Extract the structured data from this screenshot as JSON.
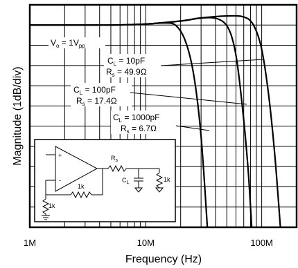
{
  "chart_data": {
    "type": "line",
    "title": "",
    "xlabel": "Frequency (Hz)",
    "ylabel": "Magnitude (1dB/div)",
    "x_scale": "log",
    "xlim": [
      1000000,
      200000000
    ],
    "ylim": [
      -10,
      1
    ],
    "x_ticks": [
      {
        "value": 1000000,
        "label": "1M"
      },
      {
        "value": 10000000,
        "label": "10M"
      },
      {
        "value": 100000000,
        "label": "100M"
      }
    ],
    "grid": true,
    "series": [
      {
        "id": "cl10",
        "points": [
          [
            1000000,
            0
          ],
          [
            5000000,
            0
          ],
          [
            10000000,
            0.05
          ],
          [
            20000000,
            0.2
          ],
          [
            30000000,
            0.35
          ],
          [
            50000000,
            0.45
          ],
          [
            70000000,
            0.4
          ],
          [
            85000000,
            0
          ],
          [
            100000000,
            -1.2
          ],
          [
            115000000,
            -3.5
          ],
          [
            130000000,
            -6.5
          ],
          [
            145000000,
            -10
          ]
        ]
      },
      {
        "id": "cl100",
        "points": [
          [
            1000000,
            0
          ],
          [
            5000000,
            0
          ],
          [
            10000000,
            0.05
          ],
          [
            20000000,
            0.2
          ],
          [
            30000000,
            0.35
          ],
          [
            42000000,
            0.3
          ],
          [
            52000000,
            -0.2
          ],
          [
            60000000,
            -1.5
          ],
          [
            68000000,
            -4
          ],
          [
            76000000,
            -7
          ],
          [
            82000000,
            -10
          ]
        ]
      },
      {
        "id": "cl1000",
        "points": [
          [
            1000000,
            0
          ],
          [
            5000000,
            0
          ],
          [
            10000000,
            0.05
          ],
          [
            14000000,
            0.1
          ],
          [
            18000000,
            0
          ],
          [
            22000000,
            -0.8
          ],
          [
            26000000,
            -2.5
          ],
          [
            30000000,
            -5.5
          ],
          [
            34000000,
            -10
          ]
        ]
      }
    ],
    "annotations": {
      "vo_main": "V",
      "vo_sub": "o",
      "vo_rest": " = 1V",
      "vo_sub2": "pp",
      "cl10_c": "C",
      "cl10_csub": "L",
      "cl10_cval": " = 10pF",
      "cl10_r": "R",
      "cl10_rsub": "s",
      "cl10_rval": " = 49.9Ω",
      "cl100_c": "C",
      "cl100_csub": "L",
      "cl100_cval": " = 100pF",
      "cl100_r": "R",
      "cl100_rsub": "s",
      "cl100_rval": " = 17.4Ω",
      "cl1000_c": "C",
      "cl1000_csub": "L",
      "cl1000_cval": " = 1000pF",
      "cl1000_r": "R",
      "cl1000_rsub": "s",
      "cl1000_rval": " = 6.7Ω"
    },
    "schematic": {
      "plus": "+",
      "minus": "-",
      "rs_main": "R",
      "rs_sub": "s",
      "cl_main": "C",
      "cl_sub": "L",
      "r_load": "1k",
      "r_feedback": "1k",
      "r_ground": "1k"
    }
  }
}
